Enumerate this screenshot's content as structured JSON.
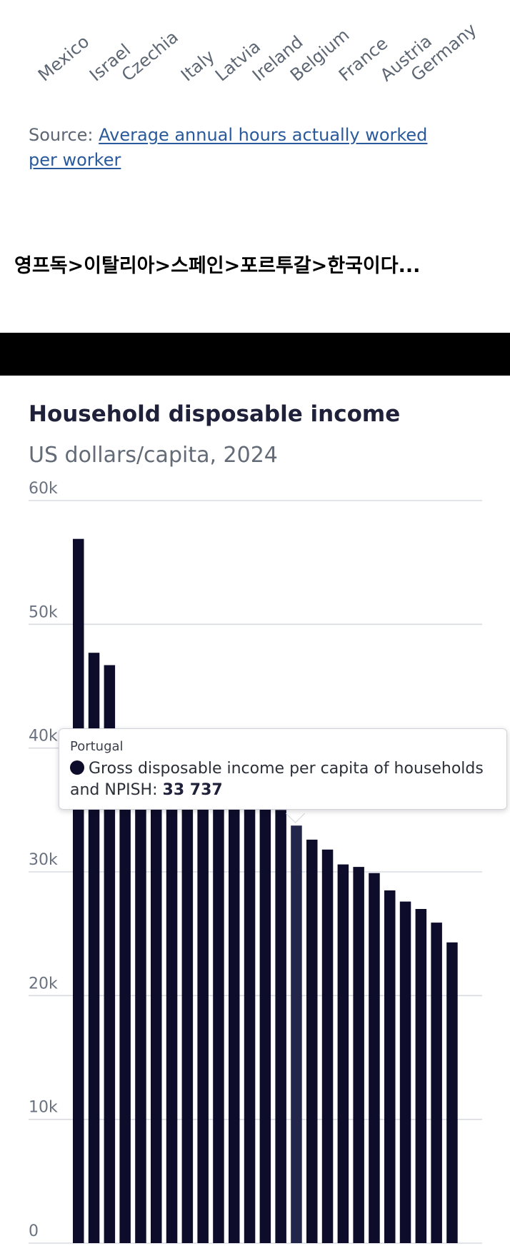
{
  "top_chart": {
    "x_tick_labels": [
      "Mexico",
      "Israel",
      "Czechia",
      "Italy",
      "Latvia",
      "Ireland",
      "Belgium",
      "France",
      "Austria",
      "Germany"
    ],
    "source_prefix": "Source: ",
    "source_link_text": "Average annual hours actually worked per worker"
  },
  "caption": "영프독>이탈리아>스페인>포르투갈>한국이다...",
  "chart_data": {
    "type": "bar",
    "title": "Household disposable income",
    "subtitle": "US dollars/capita, 2024",
    "ylim": [
      0,
      60000
    ],
    "y_ticks": [
      "0",
      "10k",
      "20k",
      "30k",
      "40k",
      "50k",
      "60k"
    ],
    "y_tick_values": [
      0,
      10000,
      20000,
      30000,
      40000,
      50000,
      60000
    ],
    "grid": true,
    "series": [
      {
        "values": [
          56900,
          47700,
          46700,
          41200,
          40000,
          39000,
          38500,
          38000,
          37500,
          37000,
          36500,
          36000,
          35500,
          35000,
          33737,
          32600,
          31800,
          30600,
          30400,
          29900,
          28500,
          27600,
          27000,
          25900,
          24300
        ]
      }
    ],
    "highlight_index": 14,
    "bar_color": "#0d0d2b",
    "highlight_color": "#22264a"
  },
  "tooltip": {
    "country": "Portugal",
    "label": "Gross disposable income per capita of households and NPISH: ",
    "value": "33 737"
  }
}
